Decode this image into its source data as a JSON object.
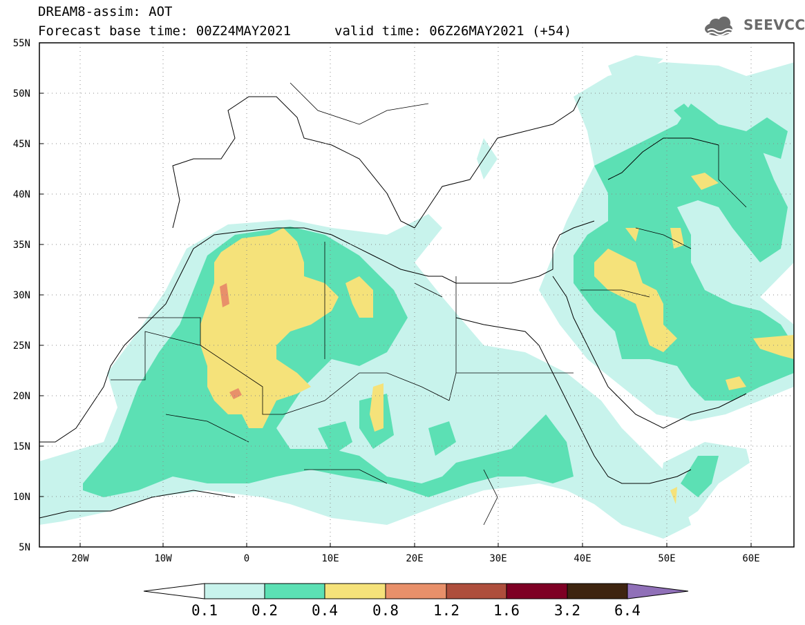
{
  "header": {
    "title": "DREAM8-assim: AOT",
    "base_time": "Forecast base time: 00Z24MAY2021",
    "valid_time": "valid time: 06Z26MAY2021 (+54)"
  },
  "logo": {
    "text": "SEEVCCC",
    "icon": "cloud-icon"
  },
  "map": {
    "lat_labels": [
      "55N",
      "50N",
      "45N",
      "40N",
      "35N",
      "30N",
      "25N",
      "20N",
      "15N",
      "10N",
      "5N"
    ],
    "lon_labels": [
      "20W",
      "10W",
      "0",
      "10E",
      "20E",
      "30E",
      "40E",
      "50E",
      "60E"
    ],
    "lat_range": [
      5,
      55
    ],
    "lon_range": [
      -25,
      65
    ],
    "grid": "dotted"
  },
  "colorbar": {
    "labels": [
      "0.1",
      "0.2",
      "0.4",
      "0.8",
      "1.2",
      "1.6",
      "3.2",
      "6.4"
    ],
    "colors": [
      "#ffffff",
      "#c8f3ec",
      "#5ce0b4",
      "#f5e27a",
      "#e8906a",
      "#ae4e3c",
      "#7e0024",
      "#3e2410",
      "#9070b8"
    ]
  }
}
